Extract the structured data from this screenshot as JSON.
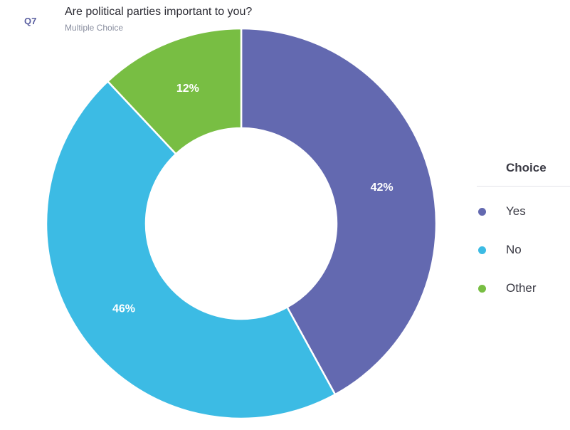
{
  "question": {
    "number": "Q7",
    "title": "Are political parties important to you?",
    "type": "Multiple Choice"
  },
  "legend": {
    "title": "Choice"
  },
  "chart_data": {
    "type": "pie",
    "donut": true,
    "title": "Are political parties important to you?",
    "categories": [
      "Yes",
      "No",
      "Other"
    ],
    "values": [
      42,
      46,
      12
    ],
    "labels": [
      "42%",
      "46%",
      "12%"
    ],
    "colors": [
      "#6369b0",
      "#3cbbe4",
      "#78be43"
    ],
    "legend_position": "right"
  }
}
